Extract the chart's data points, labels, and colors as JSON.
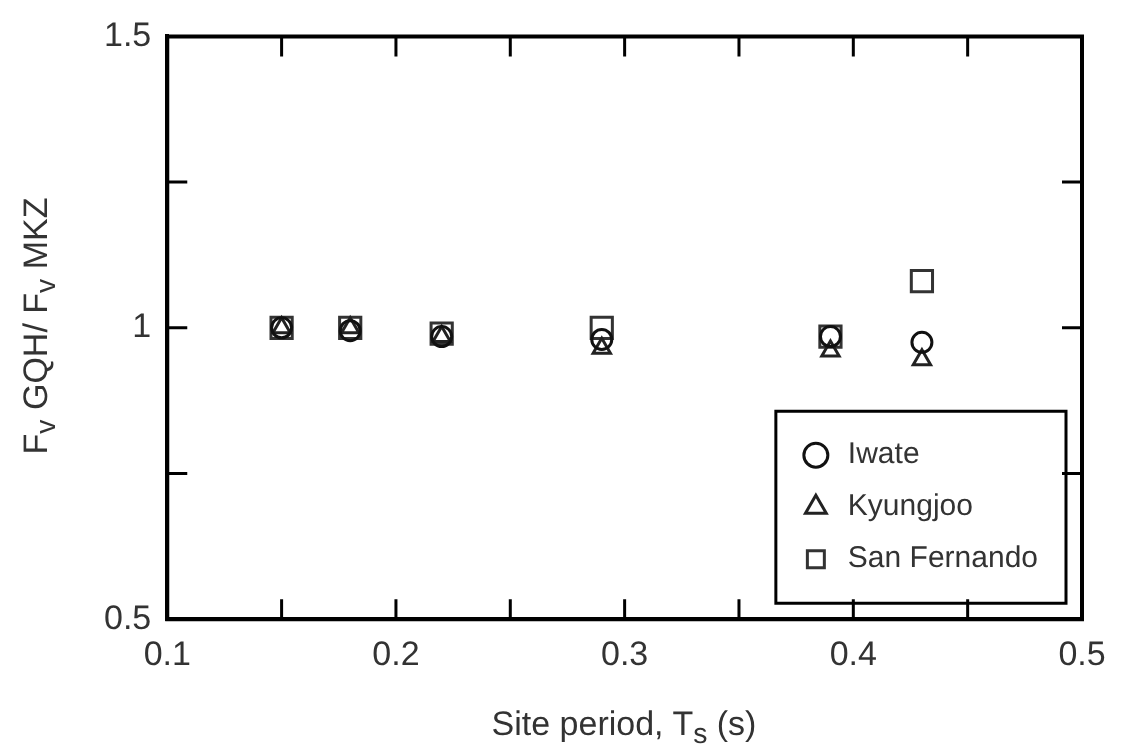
{
  "chart_data": {
    "type": "scatter",
    "xlabel": "Site period, T$_{s}$ (s)",
    "ylabel": "F$_{v}$ GQH/ F$_{v}$ MKZ",
    "xlim": [
      0.1,
      0.5
    ],
    "xticks": [
      0.1,
      {
        "value": 0.15,
        "label": null
      },
      0.2,
      {
        "value": 0.25,
        "label": null
      },
      0.3,
      {
        "value": 0.35,
        "label": null
      },
      0.4,
      {
        "value": 0.45,
        "label": null
      },
      0.5
    ],
    "ylim": [
      0.5,
      1.5
    ],
    "yticks": [
      0.5,
      {
        "value": 0.75,
        "label": null
      },
      1,
      {
        "value": 1.25,
        "label": null
      },
      1.5
    ],
    "grid": false,
    "legend": "bottom right",
    "x": [
      0.15,
      0.18,
      0.22,
      0.29,
      0.39,
      0.43
    ],
    "series": [
      {
        "name": "Iwate",
        "color": "#111111",
        "marker": "circle",
        "values": [
          1.0,
          0.995,
          0.985,
          0.98,
          0.985,
          0.975
        ]
      },
      {
        "name": "Kyungjoo",
        "color": "#222222",
        "marker": "triangle",
        "values": [
          1.0,
          1.0,
          0.985,
          0.965,
          0.96,
          0.945
        ]
      },
      {
        "name": "San Fernando",
        "color": "#333333",
        "marker": "square",
        "values": [
          1.0,
          1.0,
          0.99,
          1.0,
          0.985,
          1.08
        ]
      }
    ]
  }
}
